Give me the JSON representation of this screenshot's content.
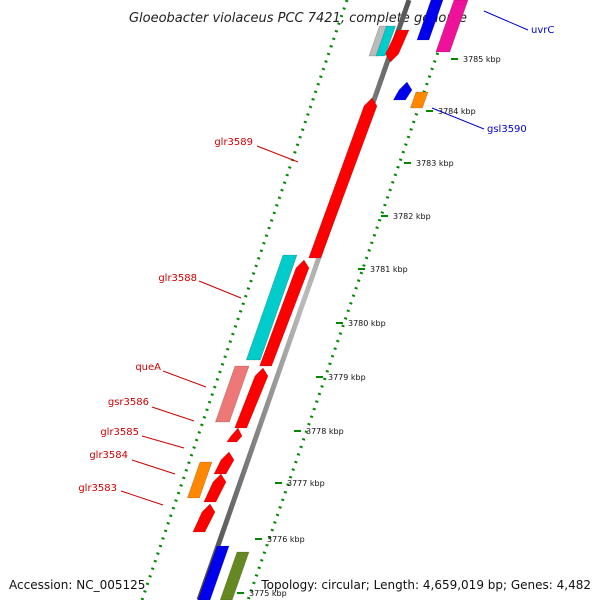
{
  "title": "Gloeobacter violaceus PCC 7421, complete genome",
  "footer": {
    "accession": "Accession: NC_005125",
    "topology": "Topology: circular; Length: 4,659,019 bp; Genes: 4,482"
  },
  "colors": {
    "red": "#ff0000",
    "cyan": "#00cccc",
    "pink": "#ee7777",
    "orange": "#ff8800",
    "blue": "#0000ee",
    "olive": "#668822",
    "magenta": "#ee1199",
    "gray": "#bbbbbb",
    "tick_green": "#008800",
    "label_red": "#cc0000",
    "label_blue": "#0000cc"
  },
  "ticks": [
    {
      "label": "3785 kbp"
    },
    {
      "label": "3784 kbp"
    },
    {
      "label": "3783 kbp"
    },
    {
      "label": "3782 kbp"
    },
    {
      "label": "3781 kbp"
    },
    {
      "label": "3780 kbp"
    },
    {
      "label": "3779 kbp"
    },
    {
      "label": "3778 kbp"
    },
    {
      "label": "3777 kbp"
    },
    {
      "label": "3776 kbp"
    },
    {
      "label": "3775 kbp"
    }
  ],
  "gene_labels": [
    {
      "name": "glr3589",
      "color": "red"
    },
    {
      "name": "glr3588",
      "color": "red"
    },
    {
      "name": "queA",
      "color": "red"
    },
    {
      "name": "gsr3586",
      "color": "red"
    },
    {
      "name": "glr3585",
      "color": "red"
    },
    {
      "name": "glr3584",
      "color": "red"
    },
    {
      "name": "glr3583",
      "color": "red"
    },
    {
      "name": "uvrC",
      "color": "blue"
    },
    {
      "name": "gsl3590",
      "color": "blue"
    }
  ]
}
